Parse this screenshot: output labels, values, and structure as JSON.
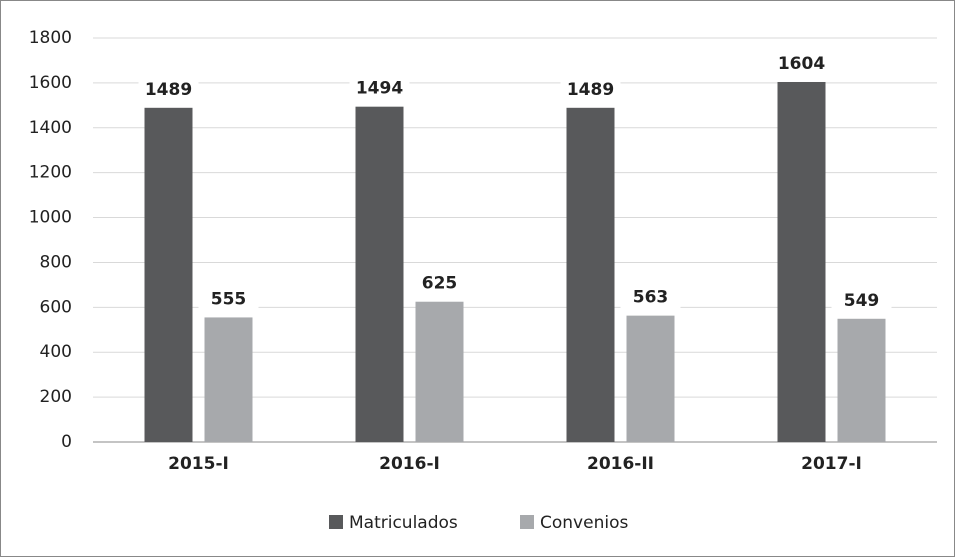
{
  "chart_data": {
    "type": "bar",
    "categories": [
      "2015-I",
      "2016-I",
      "2016-II",
      "2017-I"
    ],
    "series": [
      {
        "name": "Matriculados",
        "color": "#58595b",
        "values": [
          1489,
          1494,
          1489,
          1604
        ]
      },
      {
        "name": "Convenios",
        "color": "#a7a9ac",
        "values": [
          555,
          625,
          563,
          549
        ]
      }
    ],
    "ylim": [
      0,
      1800
    ],
    "yticks": [
      0,
      200,
      400,
      600,
      800,
      1000,
      1200,
      1400,
      1600,
      1800
    ],
    "grid": true,
    "legend": "bottom"
  }
}
